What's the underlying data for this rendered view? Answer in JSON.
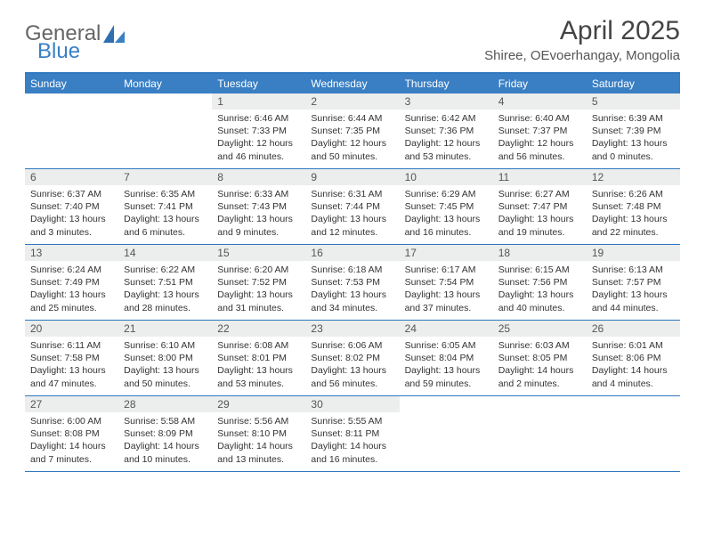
{
  "logo": {
    "text1": "General",
    "text2": "Blue"
  },
  "title": "April 2025",
  "location": "Shiree, OEvoerhangay, Mongolia",
  "colors": {
    "header_bg": "#3a7fc4",
    "header_border": "#2f78c0",
    "date_bar_bg": "#eceded",
    "text_muted": "#555",
    "body_text": "#333"
  },
  "dayNames": [
    "Sunday",
    "Monday",
    "Tuesday",
    "Wednesday",
    "Thursday",
    "Friday",
    "Saturday"
  ],
  "grid": {
    "leadingBlanks": 2,
    "trailingBlanks": 3
  },
  "days": [
    {
      "n": 1,
      "sunrise": "6:46 AM",
      "sunset": "7:33 PM",
      "daylight": "12 hours and 46 minutes."
    },
    {
      "n": 2,
      "sunrise": "6:44 AM",
      "sunset": "7:35 PM",
      "daylight": "12 hours and 50 minutes."
    },
    {
      "n": 3,
      "sunrise": "6:42 AM",
      "sunset": "7:36 PM",
      "daylight": "12 hours and 53 minutes."
    },
    {
      "n": 4,
      "sunrise": "6:40 AM",
      "sunset": "7:37 PM",
      "daylight": "12 hours and 56 minutes."
    },
    {
      "n": 5,
      "sunrise": "6:39 AM",
      "sunset": "7:39 PM",
      "daylight": "13 hours and 0 minutes."
    },
    {
      "n": 6,
      "sunrise": "6:37 AM",
      "sunset": "7:40 PM",
      "daylight": "13 hours and 3 minutes."
    },
    {
      "n": 7,
      "sunrise": "6:35 AM",
      "sunset": "7:41 PM",
      "daylight": "13 hours and 6 minutes."
    },
    {
      "n": 8,
      "sunrise": "6:33 AM",
      "sunset": "7:43 PM",
      "daylight": "13 hours and 9 minutes."
    },
    {
      "n": 9,
      "sunrise": "6:31 AM",
      "sunset": "7:44 PM",
      "daylight": "13 hours and 12 minutes."
    },
    {
      "n": 10,
      "sunrise": "6:29 AM",
      "sunset": "7:45 PM",
      "daylight": "13 hours and 16 minutes."
    },
    {
      "n": 11,
      "sunrise": "6:27 AM",
      "sunset": "7:47 PM",
      "daylight": "13 hours and 19 minutes."
    },
    {
      "n": 12,
      "sunrise": "6:26 AM",
      "sunset": "7:48 PM",
      "daylight": "13 hours and 22 minutes."
    },
    {
      "n": 13,
      "sunrise": "6:24 AM",
      "sunset": "7:49 PM",
      "daylight": "13 hours and 25 minutes."
    },
    {
      "n": 14,
      "sunrise": "6:22 AM",
      "sunset": "7:51 PM",
      "daylight": "13 hours and 28 minutes."
    },
    {
      "n": 15,
      "sunrise": "6:20 AM",
      "sunset": "7:52 PM",
      "daylight": "13 hours and 31 minutes."
    },
    {
      "n": 16,
      "sunrise": "6:18 AM",
      "sunset": "7:53 PM",
      "daylight": "13 hours and 34 minutes."
    },
    {
      "n": 17,
      "sunrise": "6:17 AM",
      "sunset": "7:54 PM",
      "daylight": "13 hours and 37 minutes."
    },
    {
      "n": 18,
      "sunrise": "6:15 AM",
      "sunset": "7:56 PM",
      "daylight": "13 hours and 40 minutes."
    },
    {
      "n": 19,
      "sunrise": "6:13 AM",
      "sunset": "7:57 PM",
      "daylight": "13 hours and 44 minutes."
    },
    {
      "n": 20,
      "sunrise": "6:11 AM",
      "sunset": "7:58 PM",
      "daylight": "13 hours and 47 minutes."
    },
    {
      "n": 21,
      "sunrise": "6:10 AM",
      "sunset": "8:00 PM",
      "daylight": "13 hours and 50 minutes."
    },
    {
      "n": 22,
      "sunrise": "6:08 AM",
      "sunset": "8:01 PM",
      "daylight": "13 hours and 53 minutes."
    },
    {
      "n": 23,
      "sunrise": "6:06 AM",
      "sunset": "8:02 PM",
      "daylight": "13 hours and 56 minutes."
    },
    {
      "n": 24,
      "sunrise": "6:05 AM",
      "sunset": "8:04 PM",
      "daylight": "13 hours and 59 minutes."
    },
    {
      "n": 25,
      "sunrise": "6:03 AM",
      "sunset": "8:05 PM",
      "daylight": "14 hours and 2 minutes."
    },
    {
      "n": 26,
      "sunrise": "6:01 AM",
      "sunset": "8:06 PM",
      "daylight": "14 hours and 4 minutes."
    },
    {
      "n": 27,
      "sunrise": "6:00 AM",
      "sunset": "8:08 PM",
      "daylight": "14 hours and 7 minutes."
    },
    {
      "n": 28,
      "sunrise": "5:58 AM",
      "sunset": "8:09 PM",
      "daylight": "14 hours and 10 minutes."
    },
    {
      "n": 29,
      "sunrise": "5:56 AM",
      "sunset": "8:10 PM",
      "daylight": "14 hours and 13 minutes."
    },
    {
      "n": 30,
      "sunrise": "5:55 AM",
      "sunset": "8:11 PM",
      "daylight": "14 hours and 16 minutes."
    }
  ],
  "labels": {
    "sunrise": "Sunrise:",
    "sunset": "Sunset:",
    "daylight": "Daylight:"
  }
}
